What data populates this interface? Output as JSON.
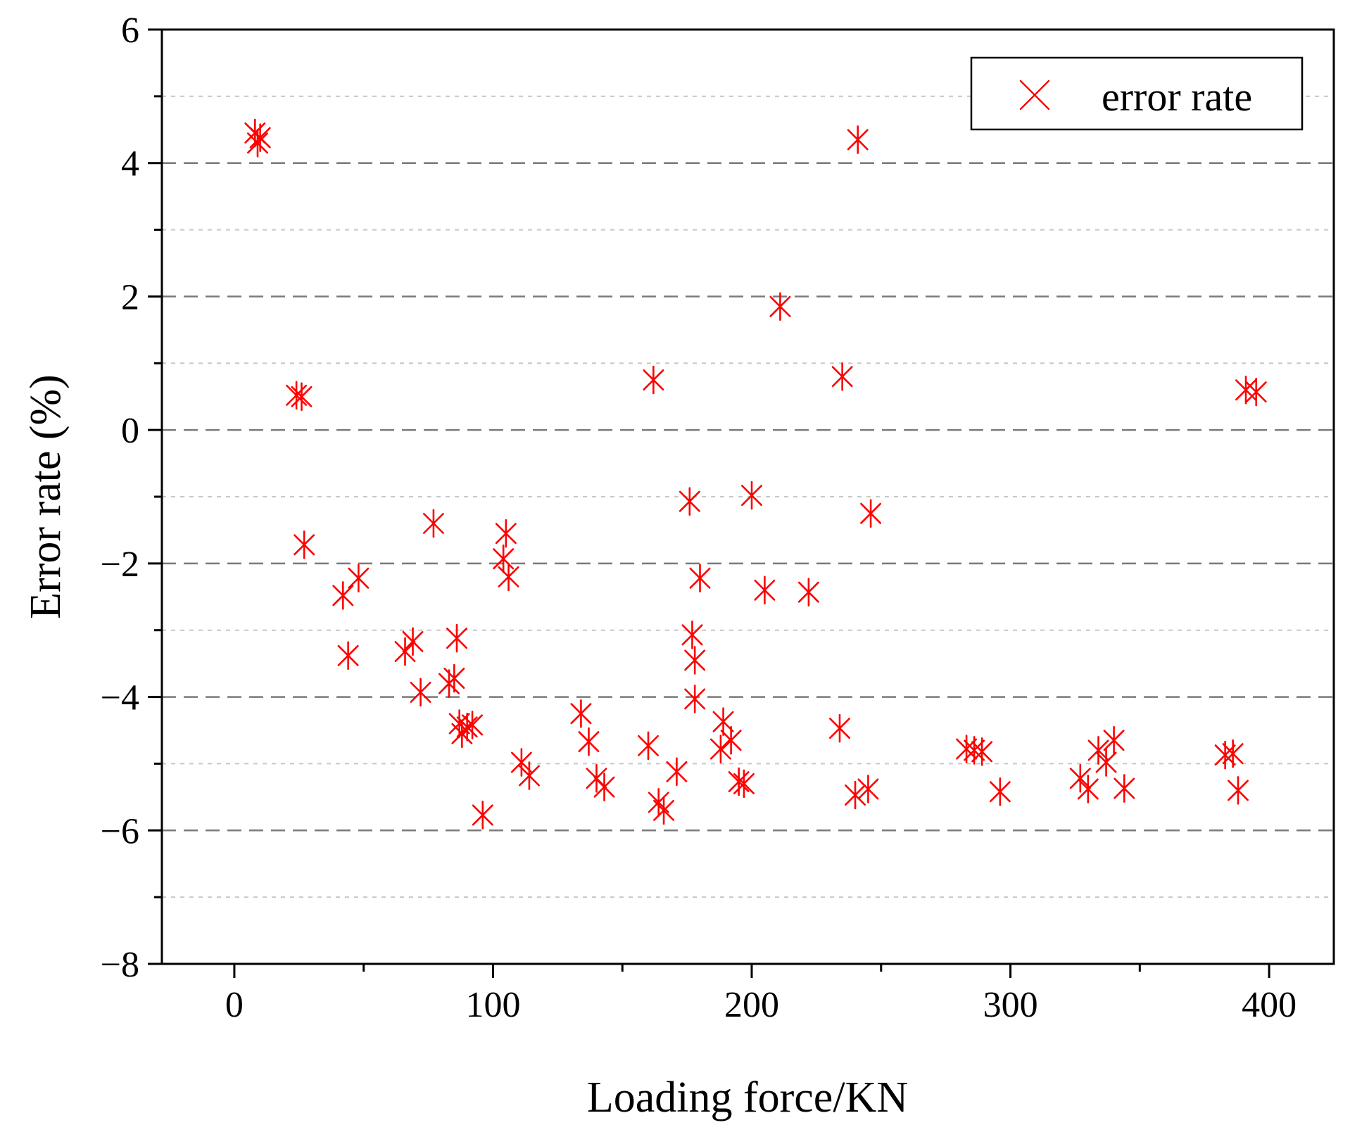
{
  "chart_data": {
    "type": "scatter",
    "xlabel": "Loading force/KN",
    "ylabel": "Error rate (%)",
    "xlim": [
      -28,
      425
    ],
    "ylim": [
      -8,
      6
    ],
    "xticks": [
      0,
      100,
      200,
      300,
      400
    ],
    "yticks": [
      6,
      4,
      2,
      0,
      -2,
      -4,
      -6,
      -8
    ],
    "ytick_labels": [
      "6",
      "4",
      "2",
      "0",
      "−2",
      "−4",
      "−6",
      "−8"
    ],
    "grid": "horizontal dashed",
    "legend": {
      "placement": "top-right",
      "entries": [
        "error rate"
      ]
    },
    "series": [
      {
        "name": "error rate",
        "color": "#ff0000",
        "marker": "asterisk",
        "points": [
          [
            8,
            4.45
          ],
          [
            9,
            4.3
          ],
          [
            10,
            4.38
          ],
          [
            24,
            0.52
          ],
          [
            26,
            0.5
          ],
          [
            27,
            -1.72
          ],
          [
            42,
            -2.48
          ],
          [
            44,
            -3.38
          ],
          [
            48,
            -2.22
          ],
          [
            66,
            -3.32
          ],
          [
            69,
            -3.17
          ],
          [
            72,
            -3.93
          ],
          [
            77,
            -1.4
          ],
          [
            83,
            -3.8
          ],
          [
            85,
            -3.72
          ],
          [
            86,
            -3.12
          ],
          [
            87,
            -4.4
          ],
          [
            88,
            -4.55
          ],
          [
            90,
            -4.45
          ],
          [
            92,
            -4.42
          ],
          [
            96,
            -5.77
          ],
          [
            104,
            -1.93
          ],
          [
            105,
            -1.55
          ],
          [
            106,
            -2.2
          ],
          [
            111,
            -4.98
          ],
          [
            114,
            -5.18
          ],
          [
            134,
            -4.25
          ],
          [
            137,
            -4.67
          ],
          [
            140,
            -5.22
          ],
          [
            143,
            -5.35
          ],
          [
            160,
            -4.73
          ],
          [
            162,
            0.75
          ],
          [
            164,
            -5.58
          ],
          [
            166,
            -5.7
          ],
          [
            171,
            -5.12
          ],
          [
            176,
            -1.07
          ],
          [
            177,
            -3.07
          ],
          [
            178,
            -3.45
          ],
          [
            178,
            -4.03
          ],
          [
            180,
            -2.22
          ],
          [
            188,
            -4.78
          ],
          [
            189,
            -4.37
          ],
          [
            192,
            -4.65
          ],
          [
            195,
            -5.27
          ],
          [
            197,
            -5.3
          ],
          [
            200,
            -0.98
          ],
          [
            205,
            -2.4
          ],
          [
            211,
            1.85
          ],
          [
            222,
            -2.43
          ],
          [
            234,
            -4.47
          ],
          [
            235,
            0.8
          ],
          [
            240,
            -5.47
          ],
          [
            241,
            4.35
          ],
          [
            245,
            -5.38
          ],
          [
            246,
            -1.25
          ],
          [
            283,
            -4.78
          ],
          [
            286,
            -4.8
          ],
          [
            289,
            -4.82
          ],
          [
            296,
            -5.42
          ],
          [
            327,
            -5.22
          ],
          [
            330,
            -5.38
          ],
          [
            334,
            -4.8
          ],
          [
            337,
            -4.98
          ],
          [
            340,
            -4.65
          ],
          [
            344,
            -5.37
          ],
          [
            383,
            -4.87
          ],
          [
            386,
            -4.85
          ],
          [
            388,
            -5.4
          ],
          [
            391,
            0.6
          ],
          [
            395,
            0.57
          ]
        ]
      }
    ]
  }
}
